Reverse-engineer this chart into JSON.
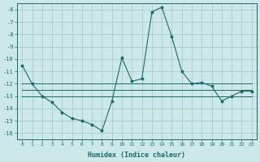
{
  "xlabel": "Humidex (Indice chaleur)",
  "background_color": "#cce8e8",
  "grid_color": "#aacccc",
  "line_color": "#1a6b6b",
  "x": [
    0,
    1,
    2,
    3,
    4,
    5,
    6,
    7,
    8,
    9,
    10,
    11,
    12,
    13,
    14,
    15,
    16,
    17,
    18,
    19,
    20,
    21,
    22,
    23
  ],
  "y_main": [
    -10.5,
    -12.0,
    -13.0,
    -13.5,
    -14.3,
    -14.8,
    -15.0,
    -15.3,
    -15.8,
    -13.4,
    -9.9,
    -11.8,
    -11.6,
    -6.2,
    -5.8,
    -8.2,
    -11.0,
    -12.0,
    -11.9,
    -12.2,
    -13.4,
    -13.0,
    -12.6,
    -12.6
  ],
  "y_upper": [
    -12.0,
    -12.0,
    -12.0,
    -12.0,
    -12.0,
    -12.0,
    -12.0,
    -12.0,
    -12.0,
    -12.0,
    -12.0,
    -12.0,
    -12.0,
    -12.0,
    -12.0,
    -12.0,
    -12.0,
    -12.0,
    -12.0,
    -12.0,
    -12.0,
    -12.0,
    -12.0,
    -12.0
  ],
  "y_mean": [
    -12.5,
    -12.5,
    -12.5,
    -12.5,
    -12.5,
    -12.5,
    -12.5,
    -12.5,
    -12.5,
    -12.5,
    -12.5,
    -12.5,
    -12.5,
    -12.5,
    -12.5,
    -12.5,
    -12.5,
    -12.5,
    -12.5,
    -12.5,
    -12.5,
    -12.5,
    -12.5,
    -12.5
  ],
  "y_lower": [
    -13.0,
    -13.0,
    -13.0,
    -13.0,
    -13.0,
    -13.0,
    -13.0,
    -13.0,
    -13.0,
    -13.0,
    -13.0,
    -13.0,
    -13.0,
    -13.0,
    -13.0,
    -13.0,
    -13.0,
    -13.0,
    -13.0,
    -13.0,
    -13.0,
    -13.0,
    -13.0,
    -13.0
  ],
  "xlim": [
    -0.5,
    23.5
  ],
  "ylim": [
    -16.5,
    -5.5
  ],
  "yticks": [
    -6,
    -7,
    -8,
    -9,
    -10,
    -11,
    -12,
    -13,
    -14,
    -15,
    -16
  ],
  "xticks": [
    0,
    1,
    2,
    3,
    4,
    5,
    6,
    7,
    8,
    9,
    10,
    11,
    12,
    13,
    14,
    15,
    16,
    17,
    18,
    19,
    20,
    21,
    22,
    23
  ],
  "figsize": [
    3.2,
    2.0
  ],
  "dpi": 100
}
